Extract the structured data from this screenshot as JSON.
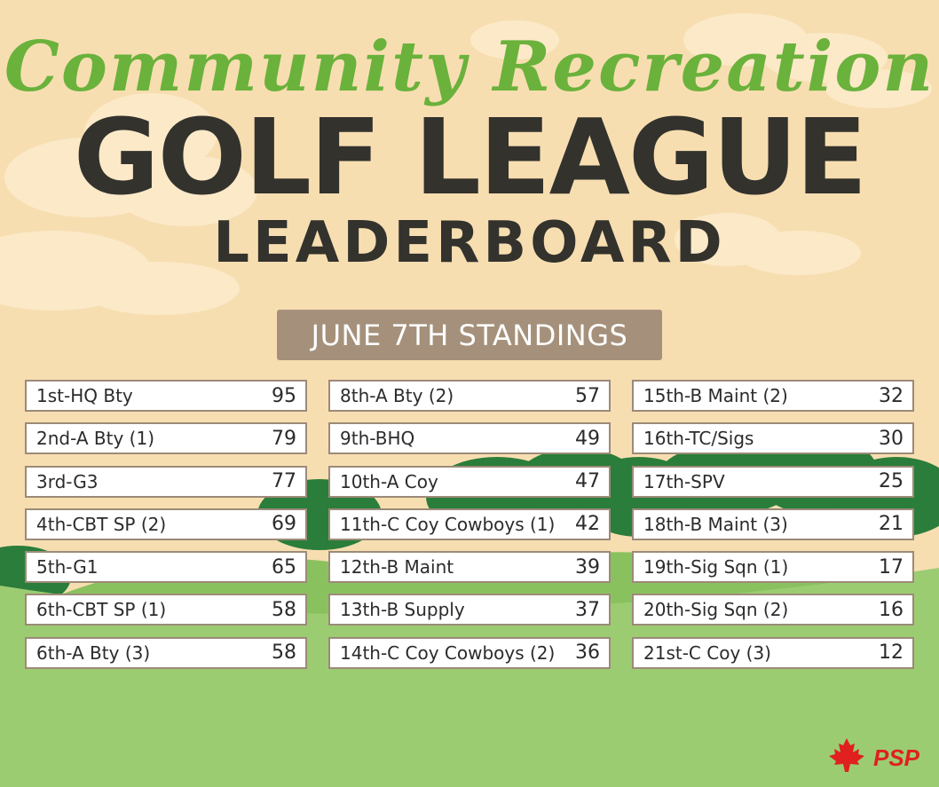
{
  "title": {
    "script": "Community Recreation",
    "main": "GOLF LEAGUE",
    "sub": "LEADERBOARD"
  },
  "banner": "JUNE 7TH STANDINGS",
  "columns": [
    [
      {
        "name": "1st-HQ Bty",
        "points": "95"
      },
      {
        "name": "2nd-A Bty (1)",
        "points": "79"
      },
      {
        "name": "3rd-G3",
        "points": "77"
      },
      {
        "name": "4th-CBT SP (2)",
        "points": "69"
      },
      {
        "name": "5th-G1",
        "points": "65"
      },
      {
        "name": "6th-CBT SP (1)",
        "points": "58"
      },
      {
        "name": "6th-A Bty (3)",
        "points": "58"
      }
    ],
    [
      {
        "name": "8th-A Bty (2)",
        "points": "57"
      },
      {
        "name": "9th-BHQ",
        "points": "49"
      },
      {
        "name": "10th-A Coy",
        "points": "47"
      },
      {
        "name": "11th-C Coy Cowboys (1)",
        "points": "42"
      },
      {
        "name": "12th-B Maint",
        "points": "39"
      },
      {
        "name": "13th-B Supply",
        "points": "37"
      },
      {
        "name": "14th-C Coy Cowboys (2)",
        "points": "36"
      }
    ],
    [
      {
        "name": "15th-B Maint (2)",
        "points": "32"
      },
      {
        "name": "16th-TC/Sigs",
        "points": "30"
      },
      {
        "name": "17th-SPV",
        "points": "25"
      },
      {
        "name": "18th-B Maint (3)",
        "points": "21"
      },
      {
        "name": "19th-Sig Sqn (1)",
        "points": "17"
      },
      {
        "name": "20th-Sig Sqn (2)",
        "points": "16"
      },
      {
        "name": "21st-C Coy (3)",
        "points": "12"
      }
    ]
  ],
  "colors": {
    "background": "#f7deb1",
    "script_title": "#6ab23b",
    "main_title": "#33322d",
    "banner": "#a5917b",
    "grass": "#9ccc72",
    "logo_red": "#e0201f"
  },
  "logo": {
    "icon": "maple-leaf-family-icon",
    "text": "PSP"
  }
}
